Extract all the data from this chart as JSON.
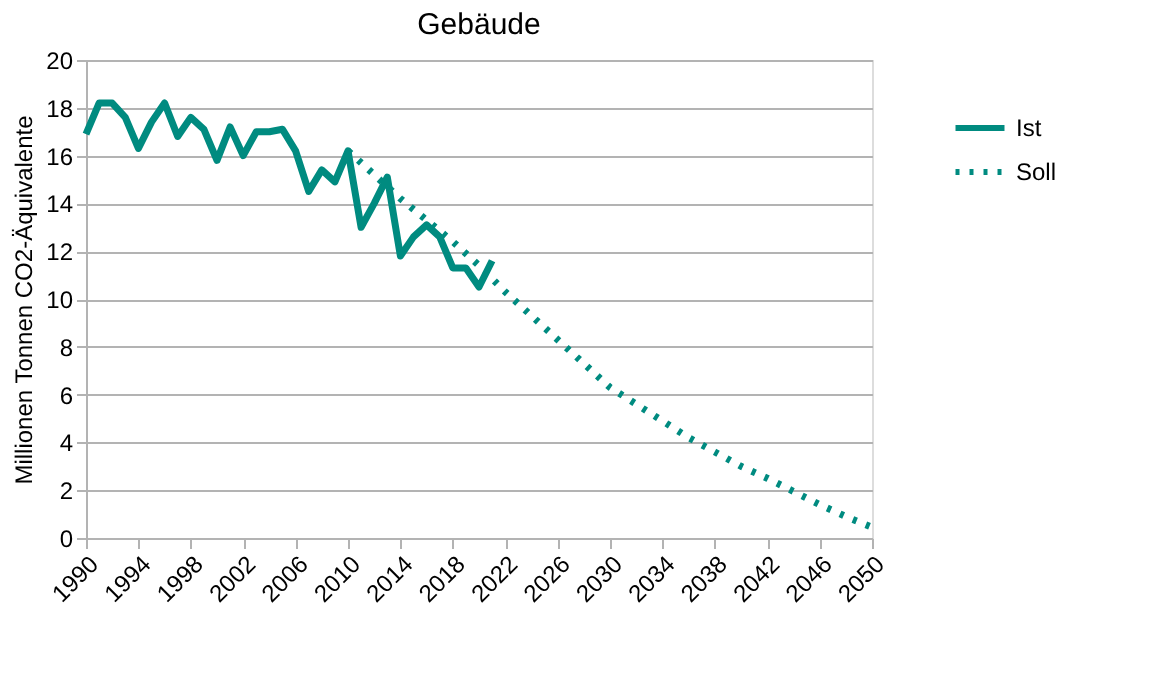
{
  "chart_data": {
    "type": "line",
    "title": "Gebäude",
    "ylabel": "Millionen Tonnen CO2-Äquivalente",
    "xlim": [
      1990,
      2050
    ],
    "xticks": [
      1990,
      1994,
      1998,
      2002,
      2006,
      2010,
      2014,
      2018,
      2022,
      2026,
      2030,
      2034,
      2038,
      2042,
      2046,
      2050
    ],
    "ylim": [
      0,
      20
    ],
    "yticks": [
      0,
      2,
      4,
      6,
      8,
      10,
      12,
      14,
      16,
      18,
      20
    ],
    "grid": "y",
    "legend": "right",
    "marker": "none",
    "series": [
      {
        "name": "Ist",
        "color": "#008b80",
        "line_style": "solid",
        "x": [
          1990,
          1991,
          1992,
          1993,
          1994,
          1995,
          1996,
          1997,
          1998,
          1999,
          2000,
          2001,
          2002,
          2003,
          2004,
          2005,
          2006,
          2007,
          2008,
          2009,
          2010,
          2011,
          2012,
          2013,
          2014,
          2015,
          2016,
          2017,
          2018,
          2019,
          2020,
          2021
        ],
        "values": [
          16.9,
          18.2,
          18.2,
          17.6,
          16.3,
          17.4,
          18.2,
          16.8,
          17.6,
          17.1,
          15.8,
          17.2,
          16.0,
          17.0,
          17.0,
          17.1,
          16.2,
          14.5,
          15.4,
          14.9,
          16.2,
          13.0,
          14.0,
          15.1,
          11.8,
          12.6,
          13.1,
          12.6,
          11.3,
          11.3,
          10.5,
          11.6
        ]
      },
      {
        "name": "Soll",
        "color": "#008b80",
        "line_style": "dotted",
        "x": [
          2010,
          2012,
          2014,
          2016,
          2018,
          2020,
          2022,
          2024,
          2026,
          2028,
          2030,
          2032,
          2034,
          2036,
          2038,
          2040,
          2042,
          2044,
          2046,
          2048,
          2050
        ],
        "values": [
          16.2,
          15.2,
          14.2,
          13.3,
          12.4,
          11.4,
          10.3,
          9.3,
          8.3,
          7.3,
          6.3,
          5.6,
          4.9,
          4.2,
          3.6,
          3.0,
          2.5,
          1.95,
          1.4,
          0.9,
          0.45
        ]
      }
    ]
  }
}
